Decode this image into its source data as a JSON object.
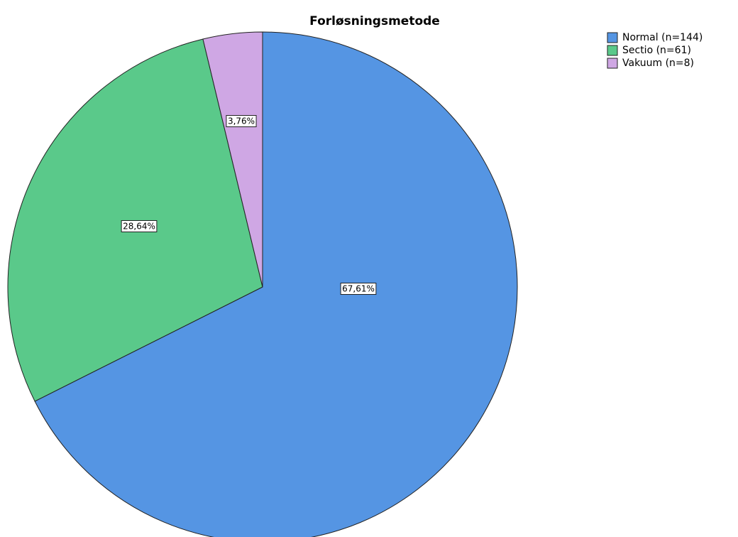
{
  "chart_data": {
    "type": "pie",
    "title": "Forløsningsmetode",
    "categories": [
      "Normal (n=144)",
      "Sectio (n=61)",
      "Vakuum (n=8)"
    ],
    "values": [
      67.61,
      28.64,
      3.76
    ],
    "value_labels": [
      "67,61%",
      "28,64%",
      "3,76%"
    ],
    "colors": [
      "#5595e3",
      "#5ac98a",
      "#cfa7e4"
    ],
    "legend": "top-right"
  }
}
